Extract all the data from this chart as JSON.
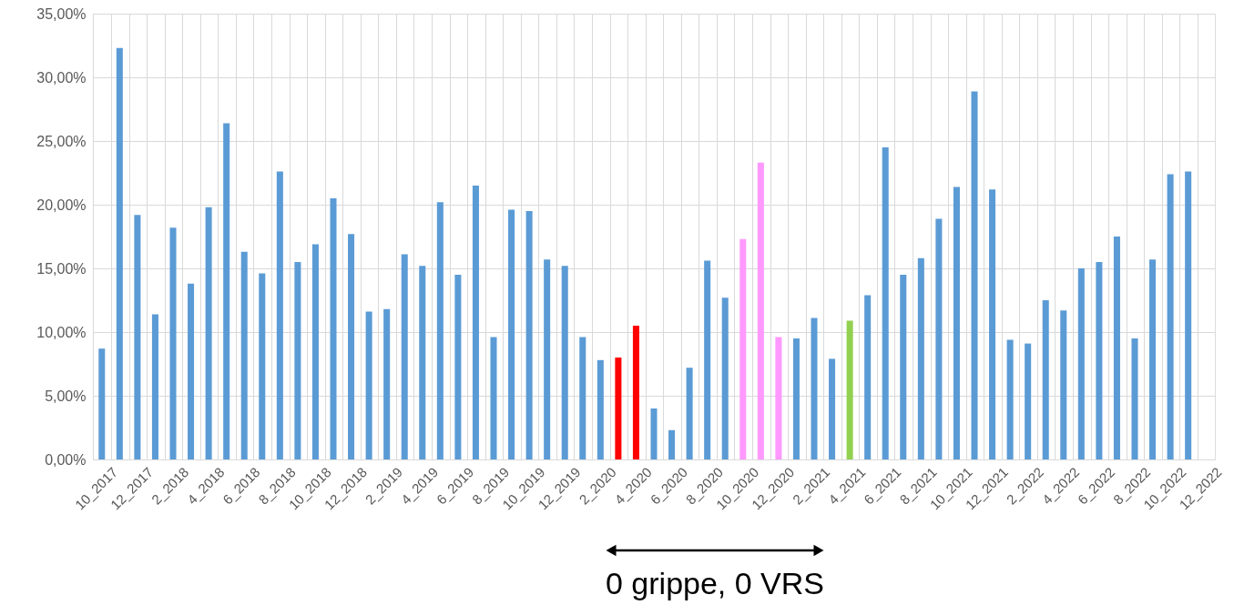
{
  "chart_data": {
    "type": "bar",
    "categories": [
      "10_2017",
      null,
      "12_2017",
      null,
      "2_2018",
      null,
      "4_2018",
      null,
      "6_2018",
      null,
      "8_2018",
      null,
      "10_2018",
      null,
      "12_2018",
      null,
      "2_2019",
      null,
      "4_2019",
      null,
      "6_2019",
      null,
      "8_2019",
      null,
      "10_2019",
      null,
      "12_2019",
      null,
      "2_2020",
      null,
      "4_2020",
      null,
      "6_2020",
      null,
      "8_2020",
      null,
      "10_2020",
      null,
      "12_2020",
      null,
      "2_2021",
      null,
      "4_2021",
      null,
      "6_2021",
      null,
      "8_2021",
      null,
      "10_2021",
      null,
      "12_2021",
      null,
      "2_2022",
      null,
      "4_2022",
      null,
      "6_2022",
      null,
      "8_2022",
      null,
      "10_2022",
      null,
      "12_2022"
    ],
    "values": [
      8.7,
      32.3,
      19.2,
      11.4,
      18.2,
      13.8,
      19.8,
      26.4,
      16.3,
      14.6,
      22.6,
      15.5,
      16.9,
      20.5,
      17.7,
      11.6,
      11.8,
      16.1,
      15.2,
      20.2,
      14.5,
      21.5,
      9.6,
      19.6,
      19.5,
      15.7,
      15.2,
      9.6,
      7.8,
      8.0,
      10.5,
      4.0,
      2.3,
      7.2,
      15.6,
      12.7,
      17.3,
      23.3,
      9.6,
      9.5,
      11.1,
      7.9,
      10.9,
      12.9,
      24.5,
      14.5,
      15.8,
      18.9,
      21.4,
      28.9,
      21.2,
      9.4,
      9.1,
      12.5,
      11.7,
      15.0,
      15.5,
      17.5,
      9.5,
      15.7,
      22.4,
      22.6,
      null
    ],
    "colors": [
      "#5b9bd5",
      "#5b9bd5",
      "#5b9bd5",
      "#5b9bd5",
      "#5b9bd5",
      "#5b9bd5",
      "#5b9bd5",
      "#5b9bd5",
      "#5b9bd5",
      "#5b9bd5",
      "#5b9bd5",
      "#5b9bd5",
      "#5b9bd5",
      "#5b9bd5",
      "#5b9bd5",
      "#5b9bd5",
      "#5b9bd5",
      "#5b9bd5",
      "#5b9bd5",
      "#5b9bd5",
      "#5b9bd5",
      "#5b9bd5",
      "#5b9bd5",
      "#5b9bd5",
      "#5b9bd5",
      "#5b9bd5",
      "#5b9bd5",
      "#5b9bd5",
      "#5b9bd5",
      "#ff0000",
      "#ff0000",
      "#5b9bd5",
      "#5b9bd5",
      "#5b9bd5",
      "#5b9bd5",
      "#5b9bd5",
      "#ff99ff",
      "#ff99ff",
      "#ff99ff",
      "#5b9bd5",
      "#5b9bd5",
      "#5b9bd5",
      "#92d050",
      "#5b9bd5",
      "#5b9bd5",
      "#5b9bd5",
      "#5b9bd5",
      "#5b9bd5",
      "#5b9bd5",
      "#5b9bd5",
      "#5b9bd5",
      "#5b9bd5",
      "#5b9bd5",
      "#5b9bd5",
      "#5b9bd5",
      "#5b9bd5",
      "#5b9bd5",
      "#5b9bd5",
      "#5b9bd5",
      "#5b9bd5",
      "#5b9bd5",
      "#5b9bd5",
      "#5b9bd5"
    ],
    "ylim": [
      0,
      35
    ],
    "yticks": [
      {
        "value": 0,
        "label": "0,00%"
      },
      {
        "value": 5,
        "label": "5,00%"
      },
      {
        "value": 10,
        "label": "10,00%"
      },
      {
        "value": 15,
        "label": "15,00%"
      },
      {
        "value": 20,
        "label": "20,00%"
      },
      {
        "value": 25,
        "label": "25,00%"
      },
      {
        "value": 30,
        "label": "30,00%"
      },
      {
        "value": 35,
        "label": "35,00%"
      }
    ],
    "grid": true,
    "annotations": [
      "0 grippe, 0 VRS"
    ]
  }
}
